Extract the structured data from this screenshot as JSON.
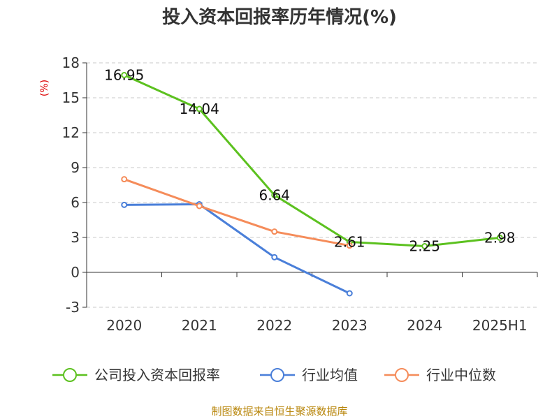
{
  "chart_data": {
    "type": "line",
    "title": "投入资本回报率历年情况(%)",
    "ylabel": "(%)",
    "categories": [
      "2020",
      "2021",
      "2022",
      "2023",
      "2024",
      "2025H1"
    ],
    "ylim": [
      -3,
      18
    ],
    "yticks": [
      18,
      15,
      12,
      9,
      6,
      3,
      0,
      -3
    ],
    "grid": true,
    "legend_position": "bottom",
    "series": [
      {
        "name": "公司投入资本回报率",
        "color": "#5cc11f",
        "values": [
          16.95,
          14.04,
          6.64,
          2.61,
          2.25,
          2.98
        ],
        "labels": [
          "16.95",
          "14.04",
          "6.64",
          "2.61",
          "2.25",
          "2.98"
        ]
      },
      {
        "name": "行业均值",
        "color": "#4a7fd9",
        "values": [
          5.8,
          5.85,
          1.3,
          -1.8,
          null,
          null
        ]
      },
      {
        "name": "行业中位数",
        "color": "#f58c5a",
        "values": [
          8.0,
          5.7,
          3.5,
          2.3,
          null,
          null
        ]
      }
    ],
    "source": "制图数据来自恒生聚源数据库"
  }
}
